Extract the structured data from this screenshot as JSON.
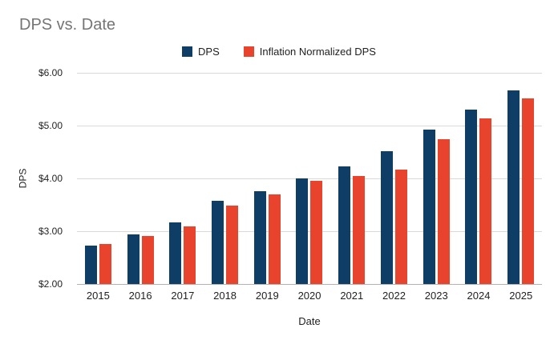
{
  "title": "DPS vs. Date",
  "colors": {
    "dps": "#0e3e65",
    "inflation_normalized_dps": "#e8432d",
    "title_text": "#757575",
    "axis_text": "#1f1f1f",
    "gridline": "#d9d9d9",
    "axis_line": "#b3b3b3"
  },
  "chart_data": {
    "type": "bar",
    "title": "DPS vs. Date",
    "xlabel": "Date",
    "ylabel": "DPS",
    "categories": [
      "2015",
      "2016",
      "2017",
      "2018",
      "2019",
      "2020",
      "2021",
      "2022",
      "2023",
      "2024",
      "2025"
    ],
    "series": [
      {
        "name": "DPS",
        "color": "#0e3e65",
        "values": [
          2.73,
          2.94,
          3.16,
          3.57,
          3.76,
          4.0,
          4.22,
          4.51,
          4.93,
          5.31,
          5.67
        ]
      },
      {
        "name": "Inflation Normalized DPS",
        "color": "#e8432d",
        "values": [
          2.76,
          2.91,
          3.09,
          3.49,
          3.7,
          3.95,
          4.05,
          4.17,
          4.75,
          5.13,
          5.51
        ]
      }
    ],
    "ylim": [
      2,
      6
    ],
    "yticks": [
      {
        "value": 2,
        "label": "$2.00"
      },
      {
        "value": 3,
        "label": "$3.00"
      },
      {
        "value": 4,
        "label": "$4.00"
      },
      {
        "value": 5,
        "label": "$5.00"
      },
      {
        "value": 6,
        "label": "$6.00"
      }
    ],
    "grid": true,
    "legend_position": "top"
  }
}
